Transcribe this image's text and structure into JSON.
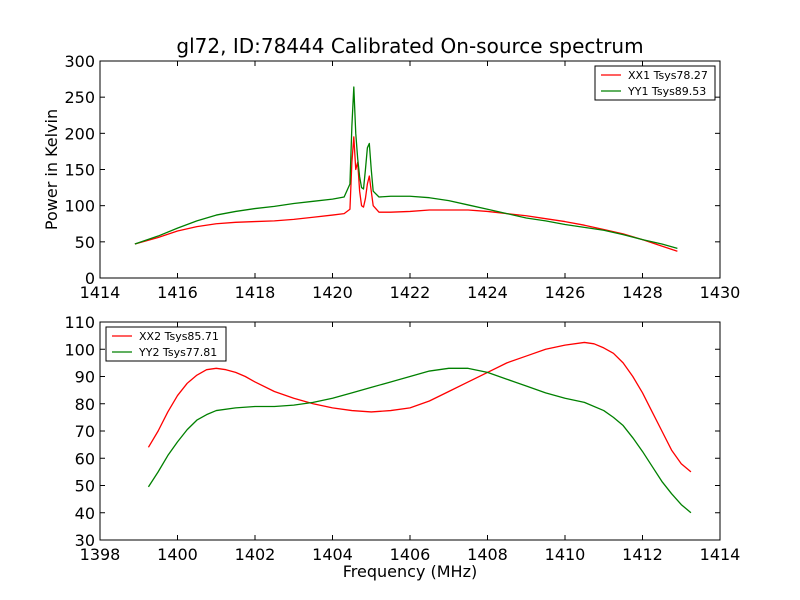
{
  "figure": {
    "title": "gl72, ID:78444 Calibrated On-source spectrum"
  },
  "colors": {
    "xx": "#ff0000",
    "yy": "#008000"
  },
  "chart_data": [
    {
      "type": "line",
      "title": "gl72, ID:78444 Calibrated On-source spectrum",
      "xlabel": "",
      "ylabel": "Power in Kelvin",
      "xlim": [
        1414,
        1430
      ],
      "ylim": [
        0,
        300
      ],
      "xticks": [
        1414,
        1416,
        1418,
        1420,
        1422,
        1424,
        1426,
        1428,
        1430
      ],
      "yticks": [
        0,
        50,
        100,
        150,
        200,
        250,
        300
      ],
      "grid": false,
      "legend_position": "top-right",
      "series": [
        {
          "name": "XX1 Tsys78.27",
          "color": "#ff0000",
          "x": [
            1414.9,
            1415.5,
            1416.0,
            1416.5,
            1417.0,
            1417.5,
            1418.0,
            1418.5,
            1419.0,
            1419.5,
            1420.0,
            1420.3,
            1420.45,
            1420.5,
            1420.55,
            1420.6,
            1420.65,
            1420.7,
            1420.75,
            1420.8,
            1420.85,
            1420.9,
            1420.95,
            1421.0,
            1421.05,
            1421.2,
            1421.5,
            1422.0,
            1422.5,
            1423.0,
            1423.5,
            1424.0,
            1424.5,
            1425.0,
            1425.5,
            1426.0,
            1426.5,
            1427.0,
            1427.5,
            1428.0,
            1428.5,
            1428.9
          ],
          "values": [
            47,
            56,
            65,
            71,
            75,
            77,
            78,
            79,
            81,
            84,
            87,
            89,
            95,
            160,
            195,
            150,
            160,
            120,
            100,
            98,
            110,
            130,
            141,
            120,
            100,
            91,
            91,
            92,
            94,
            94,
            94,
            92,
            89,
            86,
            82,
            78,
            73,
            67,
            61,
            53,
            44,
            37
          ]
        },
        {
          "name": "YY1 Tsys89.53",
          "color": "#008000",
          "x": [
            1414.9,
            1415.5,
            1416.0,
            1416.5,
            1417.0,
            1417.5,
            1418.0,
            1418.5,
            1419.0,
            1419.5,
            1420.0,
            1420.3,
            1420.45,
            1420.5,
            1420.55,
            1420.6,
            1420.65,
            1420.7,
            1420.75,
            1420.8,
            1420.85,
            1420.9,
            1420.95,
            1421.0,
            1421.05,
            1421.2,
            1421.5,
            1422.0,
            1422.5,
            1423.0,
            1423.5,
            1424.0,
            1424.5,
            1425.0,
            1425.5,
            1426.0,
            1426.5,
            1427.0,
            1427.5,
            1428.0,
            1428.5,
            1428.9
          ],
          "values": [
            47,
            58,
            69,
            79,
            87,
            92,
            96,
            99,
            103,
            106,
            109,
            112,
            130,
            210,
            264,
            200,
            165,
            140,
            125,
            123,
            150,
            180,
            186,
            150,
            120,
            112,
            113,
            113,
            111,
            107,
            101,
            95,
            89,
            83,
            79,
            74,
            70,
            66,
            60,
            53,
            47,
            41
          ]
        }
      ]
    },
    {
      "type": "line",
      "title": "",
      "xlabel": "Frequency (MHz)",
      "ylabel": "",
      "xlim": [
        1398,
        1414
      ],
      "ylim": [
        30,
        110
      ],
      "xticks": [
        1398,
        1400,
        1402,
        1404,
        1406,
        1408,
        1410,
        1412,
        1414
      ],
      "yticks": [
        30,
        40,
        50,
        60,
        70,
        80,
        90,
        100,
        110
      ],
      "grid": false,
      "legend_position": "top-left",
      "series": [
        {
          "name": "XX2 Tsys85.71",
          "color": "#ff0000",
          "x": [
            1399.25,
            1399.5,
            1399.75,
            1400.0,
            1400.25,
            1400.5,
            1400.75,
            1401.0,
            1401.25,
            1401.5,
            1401.75,
            1402.0,
            1402.5,
            1403.0,
            1403.5,
            1404.0,
            1404.5,
            1405.0,
            1405.5,
            1406.0,
            1406.5,
            1407.0,
            1407.5,
            1408.0,
            1408.5,
            1409.0,
            1409.5,
            1410.0,
            1410.5,
            1410.75,
            1411.0,
            1411.25,
            1411.5,
            1411.75,
            1412.0,
            1412.25,
            1412.5,
            1412.75,
            1413.0,
            1413.25
          ],
          "values": [
            64,
            70,
            77,
            83,
            87.5,
            90.5,
            92.5,
            93,
            92.5,
            91.5,
            90,
            88,
            84.5,
            82,
            80,
            78.5,
            77.5,
            77,
            77.5,
            78.5,
            81,
            84.5,
            88,
            91.5,
            95,
            97.5,
            100,
            101.5,
            102.5,
            102,
            100.5,
            98.5,
            95,
            90,
            84,
            77,
            70,
            63,
            58,
            55
          ]
        },
        {
          "name": "YY2 Tsys77.81",
          "color": "#008000",
          "x": [
            1399.25,
            1399.5,
            1399.75,
            1400.0,
            1400.25,
            1400.5,
            1400.75,
            1401.0,
            1401.5,
            1402.0,
            1402.5,
            1403.0,
            1403.5,
            1404.0,
            1404.5,
            1405.0,
            1405.5,
            1406.0,
            1406.5,
            1407.0,
            1407.5,
            1408.0,
            1408.5,
            1409.0,
            1409.5,
            1410.0,
            1410.5,
            1411.0,
            1411.25,
            1411.5,
            1411.75,
            1412.0,
            1412.25,
            1412.5,
            1412.75,
            1413.0,
            1413.25
          ],
          "values": [
            49.5,
            55,
            61,
            66,
            70.5,
            74,
            76,
            77.5,
            78.5,
            79,
            79,
            79.5,
            80.5,
            82,
            84,
            86,
            88,
            90,
            92,
            93,
            93,
            91.5,
            89,
            86.5,
            84,
            82,
            80.5,
            77.5,
            75,
            72,
            67.5,
            62.5,
            57,
            51.5,
            47,
            43,
            40
          ]
        }
      ]
    }
  ]
}
